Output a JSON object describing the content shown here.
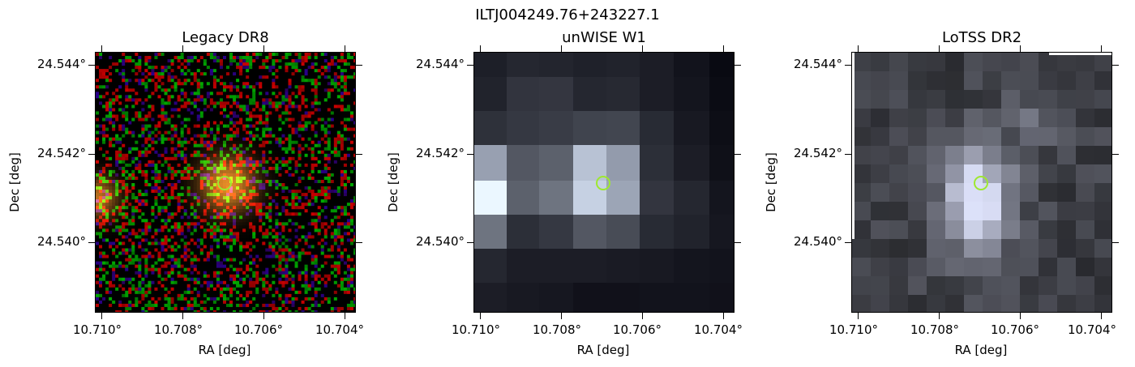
{
  "figure": {
    "title": "ILTJ004249.76+243227.1",
    "marker_color": "#9ee830"
  },
  "panels": [
    {
      "title": "Legacy DR8",
      "xlabel": "RA [deg]",
      "ylabel": "Dec [deg]",
      "xticks": [
        "10.710°",
        "10.708°",
        "10.706°",
        "10.704°"
      ],
      "yticks": [
        "24.544°",
        "24.542°",
        "24.540°"
      ]
    },
    {
      "title": "unWISE W1",
      "xlabel": "RA [deg]",
      "ylabel": "Dec [deg]",
      "xticks": [
        "10.710°",
        "10.708°",
        "10.706°",
        "10.704°"
      ],
      "yticks": [
        "24.544°",
        "24.542°",
        "24.540°"
      ]
    },
    {
      "title": "LoTSS DR2",
      "xlabel": "RA [deg]",
      "ylabel": "Dec [deg]",
      "xticks": [
        "10.710°",
        "10.708°",
        "10.706°",
        "10.704°"
      ],
      "yticks": [
        "24.544°",
        "24.542°",
        "24.540°"
      ]
    }
  ]
}
